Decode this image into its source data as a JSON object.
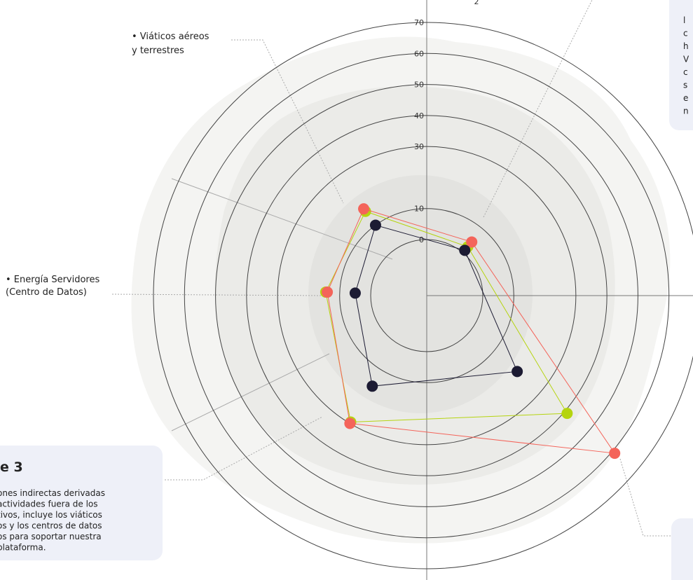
{
  "chart_data": {
    "type": "radar",
    "rlim": [
      0,
      70
    ],
    "rticks": [
      0,
      10,
      30,
      40,
      50,
      60,
      70
    ],
    "series": [
      {
        "color": "#b5d40f",
        "values": [
          15.5,
          2.5,
          41,
          29.5,
          14.5
        ]
      },
      {
        "color": "#f4645a",
        "values": [
          16.5,
          4.5,
          61,
          30,
          14
        ]
      },
      {
        "color": "#1c1b33",
        "values": [
          10,
          1,
          20,
          16,
          5
        ]
      }
    ],
    "annotations": [
      {
        "lines": [
          "• Viáticos aéreos",
          "y terrestres"
        ]
      },
      {
        "lines": [
          "• Energía Servidores",
          "(Centro de Datos)"
        ]
      }
    ]
  },
  "top_fragment": "2",
  "scope_box": {
    "title": "e 3",
    "lines": [
      "ones indirectas derivadas",
      "actividades fuera de los",
      "tivos, incluye los viáticos",
      "os y los centros de datos",
      "os para soportar nuestra",
      "plataforma."
    ]
  },
  "top_right_box": {
    "lines": [
      "l",
      "c",
      "h",
      "V",
      "c",
      "s",
      "e",
      "n"
    ]
  }
}
